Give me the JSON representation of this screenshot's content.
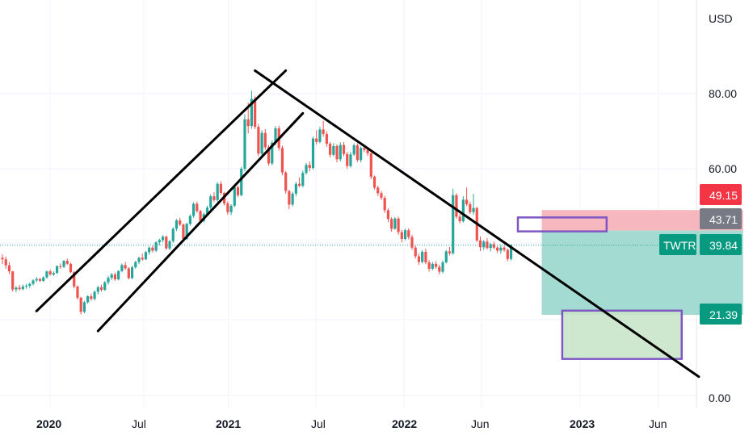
{
  "chart_data": {
    "type": "candlestick",
    "symbol": "TWTR",
    "currency": "USD",
    "y_ticks": [
      "80.00",
      "60.00",
      "0.00"
    ],
    "x_ticks": [
      {
        "label": "2020",
        "bold": true
      },
      {
        "label": "Jul",
        "bold": false
      },
      {
        "label": "2021",
        "bold": true
      },
      {
        "label": "Jul",
        "bold": false
      },
      {
        "label": "2022",
        "bold": true
      },
      {
        "label": "Jun",
        "bold": false
      },
      {
        "label": "2023",
        "bold": true
      },
      {
        "label": "Jun",
        "bold": false
      }
    ],
    "last_price": "39.84",
    "price_labels": {
      "stop": "49.15",
      "entry": "43.71",
      "target": "21.39"
    },
    "colors": {
      "up": "#26a69a",
      "down": "#ef5350",
      "stop_badge": "#f23645",
      "entry_badge": "#787b86",
      "target_badge": "#089981",
      "profit_zone": "#9ed9d1",
      "loss_zone": "#f7b3ba",
      "box_outline": "#7e57c2",
      "box_fill": "#c8e6c9"
    },
    "ohlc": [
      [
        36.5,
        37.4,
        34.8,
        36.1
      ],
      [
        36.1,
        36.8,
        33.6,
        34.5
      ],
      [
        34.5,
        35.3,
        32.2,
        32.9
      ],
      [
        32.9,
        33.0,
        27.6,
        28.1
      ],
      [
        28.1,
        29.0,
        27.4,
        28.6
      ],
      [
        28.6,
        29.3,
        27.8,
        28.2
      ],
      [
        28.2,
        29.4,
        27.9,
        28.9
      ],
      [
        28.9,
        29.6,
        28.3,
        29.1
      ],
      [
        29.1,
        29.9,
        28.5,
        29.6
      ],
      [
        29.6,
        30.8,
        29.2,
        30.5
      ],
      [
        30.5,
        31.4,
        30.0,
        30.9
      ],
      [
        30.9,
        31.2,
        30.1,
        30.4
      ],
      [
        30.4,
        31.6,
        30.1,
        31.3
      ],
      [
        31.3,
        33.1,
        31.0,
        32.9
      ],
      [
        32.9,
        33.4,
        31.8,
        32.1
      ],
      [
        32.1,
        32.9,
        31.7,
        32.5
      ],
      [
        32.5,
        34.5,
        32.2,
        34.3
      ],
      [
        34.3,
        35.0,
        33.6,
        34.1
      ],
      [
        34.1,
        35.9,
        33.8,
        35.7
      ],
      [
        35.7,
        36.3,
        34.6,
        34.9
      ],
      [
        34.9,
        35.2,
        32.4,
        32.7
      ],
      [
        32.7,
        33.0,
        28.4,
        28.9
      ],
      [
        28.9,
        29.2,
        25.4,
        25.9
      ],
      [
        25.9,
        26.2,
        21.5,
        22.2
      ],
      [
        22.2,
        25.1,
        21.8,
        24.7
      ],
      [
        24.7,
        26.6,
        24.3,
        26.3
      ],
      [
        26.3,
        27.0,
        25.1,
        25.6
      ],
      [
        25.6,
        27.9,
        25.2,
        27.5
      ],
      [
        27.5,
        29.1,
        26.8,
        28.7
      ],
      [
        28.7,
        29.4,
        27.6,
        28.0
      ],
      [
        28.0,
        30.3,
        27.7,
        30.0
      ],
      [
        30.0,
        31.7,
        29.4,
        31.2
      ],
      [
        31.2,
        32.5,
        30.6,
        32.1
      ],
      [
        32.1,
        32.6,
        30.4,
        30.8
      ],
      [
        30.8,
        33.2,
        30.5,
        33.0
      ],
      [
        33.0,
        35.0,
        32.7,
        34.6
      ],
      [
        34.6,
        35.4,
        33.3,
        33.7
      ],
      [
        33.7,
        34.0,
        30.8,
        31.1
      ],
      [
        31.1,
        34.4,
        30.9,
        34.0
      ],
      [
        34.0,
        35.7,
        33.6,
        35.4
      ],
      [
        35.4,
        36.8,
        34.8,
        36.5
      ],
      [
        36.5,
        37.6,
        35.7,
        36.1
      ],
      [
        36.1,
        38.3,
        35.9,
        38.0
      ],
      [
        38.0,
        39.5,
        37.3,
        39.2
      ],
      [
        39.2,
        39.8,
        37.9,
        38.4
      ],
      [
        38.4,
        40.9,
        38.0,
        40.6
      ],
      [
        40.6,
        41.6,
        39.8,
        41.2
      ],
      [
        41.2,
        42.5,
        40.6,
        42.1
      ],
      [
        42.1,
        42.4,
        38.6,
        39.0
      ],
      [
        39.0,
        41.2,
        38.5,
        40.9
      ],
      [
        40.9,
        44.6,
        40.5,
        44.2
      ],
      [
        44.2,
        46.8,
        43.6,
        46.4
      ],
      [
        46.4,
        47.1,
        44.9,
        45.3
      ],
      [
        45.3,
        45.6,
        41.1,
        41.5
      ],
      [
        41.5,
        45.8,
        41.2,
        45.5
      ],
      [
        45.5,
        48.0,
        45.0,
        47.6
      ],
      [
        47.6,
        51.2,
        47.1,
        50.8
      ],
      [
        50.8,
        51.4,
        48.4,
        48.9
      ],
      [
        48.9,
        49.2,
        45.8,
        46.3
      ],
      [
        46.3,
        48.5,
        45.9,
        48.1
      ],
      [
        48.1,
        50.3,
        47.6,
        49.8
      ],
      [
        49.8,
        53.3,
        49.2,
        52.8
      ],
      [
        52.8,
        53.9,
        51.3,
        51.8
      ],
      [
        51.8,
        56.5,
        51.4,
        56.1
      ],
      [
        56.1,
        56.8,
        53.2,
        53.7
      ],
      [
        53.7,
        54.0,
        50.4,
        50.9
      ],
      [
        50.9,
        51.5,
        47.9,
        48.6
      ],
      [
        48.6,
        50.7,
        47.8,
        50.3
      ],
      [
        50.3,
        55.6,
        49.9,
        55.2
      ],
      [
        55.2,
        55.6,
        52.6,
        53.1
      ],
      [
        53.1,
        60.6,
        52.8,
        60.1
      ],
      [
        60.1,
        74.6,
        59.4,
        73.2
      ],
      [
        73.2,
        77.6,
        69.5,
        71.4
      ],
      [
        71.4,
        80.8,
        70.7,
        78.6
      ],
      [
        78.6,
        79.3,
        70.6,
        71.2
      ],
      [
        71.2,
        72.0,
        63.4,
        64.1
      ],
      [
        64.1,
        70.3,
        63.6,
        69.6
      ],
      [
        69.6,
        70.6,
        65.1,
        65.8
      ],
      [
        65.8,
        66.4,
        60.9,
        61.5
      ],
      [
        61.5,
        67.6,
        61.0,
        67.0
      ],
      [
        67.0,
        71.4,
        66.3,
        70.8
      ],
      [
        70.8,
        71.5,
        64.9,
        65.6
      ],
      [
        65.6,
        66.2,
        58.4,
        59.1
      ],
      [
        59.1,
        59.5,
        53.5,
        54.2
      ],
      [
        54.2,
        54.5,
        49.4,
        50.6
      ],
      [
        50.6,
        54.0,
        50.1,
        53.5
      ],
      [
        53.5,
        56.6,
        52.8,
        56.1
      ],
      [
        56.1,
        57.8,
        55.2,
        55.6
      ],
      [
        55.6,
        59.6,
        55.1,
        59.0
      ],
      [
        59.0,
        61.6,
        58.5,
        61.1
      ],
      [
        61.1,
        62.0,
        59.4,
        60.3
      ],
      [
        60.3,
        68.6,
        59.9,
        68.1
      ],
      [
        68.1,
        70.3,
        66.5,
        67.2
      ],
      [
        67.2,
        71.2,
        66.8,
        70.5
      ],
      [
        70.5,
        72.8,
        68.6,
        69.3
      ],
      [
        69.3,
        70.0,
        65.9,
        66.7
      ],
      [
        66.7,
        67.2,
        63.1,
        63.8
      ],
      [
        63.8,
        66.9,
        63.4,
        66.1
      ],
      [
        66.1,
        66.6,
        61.8,
        62.6
      ],
      [
        62.6,
        67.1,
        62.0,
        66.4
      ],
      [
        66.4,
        67.2,
        63.4,
        64.0
      ],
      [
        64.0,
        64.5,
        60.1,
        60.8
      ],
      [
        60.8,
        64.6,
        60.4,
        63.9
      ],
      [
        63.9,
        66.8,
        63.5,
        66.3
      ],
      [
        66.3,
        66.8,
        61.9,
        62.4
      ],
      [
        62.4,
        66.0,
        61.8,
        65.6
      ],
      [
        65.6,
        66.4,
        64.5,
        65.1
      ],
      [
        65.1,
        65.8,
        63.5,
        64.2
      ],
      [
        64.2,
        64.4,
        57.3,
        58.0
      ],
      [
        58.0,
        58.3,
        54.6,
        55.1
      ],
      [
        55.1,
        55.6,
        52.9,
        53.6
      ],
      [
        53.6,
        54.2,
        51.8,
        52.4
      ],
      [
        52.4,
        52.9,
        48.4,
        49.1
      ],
      [
        49.1,
        49.6,
        45.9,
        46.8
      ],
      [
        46.8,
        47.3,
        43.4,
        44.2
      ],
      [
        44.2,
        47.3,
        43.9,
        46.9
      ],
      [
        46.9,
        47.4,
        42.6,
        43.3
      ],
      [
        43.3,
        43.9,
        40.6,
        41.5
      ],
      [
        41.5,
        44.2,
        41.1,
        43.8
      ],
      [
        43.8,
        44.3,
        41.4,
        42.0
      ],
      [
        42.0,
        42.6,
        38.6,
        39.2
      ],
      [
        39.2,
        39.8,
        36.3,
        36.9
      ],
      [
        36.9,
        37.6,
        34.6,
        35.4
      ],
      [
        35.4,
        38.6,
        35.0,
        38.1
      ],
      [
        38.1,
        38.9,
        34.8,
        35.3
      ],
      [
        35.3,
        35.9,
        32.8,
        33.6
      ],
      [
        33.6,
        35.4,
        33.2,
        34.9
      ],
      [
        34.9,
        35.6,
        33.6,
        34.1
      ],
      [
        34.1,
        34.7,
        32.1,
        32.8
      ],
      [
        32.8,
        35.8,
        32.4,
        35.3
      ],
      [
        35.3,
        38.6,
        35.0,
        38.2
      ],
      [
        38.2,
        39.4,
        37.1,
        37.7
      ],
      [
        37.7,
        54.8,
        37.3,
        53.1
      ],
      [
        53.1,
        53.6,
        46.9,
        47.4
      ],
      [
        47.4,
        48.1,
        45.6,
        46.2
      ],
      [
        46.2,
        52.8,
        45.8,
        51.9
      ],
      [
        51.9,
        55.1,
        50.2,
        50.7
      ],
      [
        50.7,
        51.4,
        48.1,
        48.6
      ],
      [
        48.6,
        53.5,
        47.9,
        49.7
      ],
      [
        49.7,
        50.0,
        40.6,
        41.1
      ],
      [
        41.1,
        42.1,
        38.3,
        39.3
      ],
      [
        39.3,
        41.2,
        38.6,
        40.8
      ],
      [
        40.8,
        41.7,
        38.7,
        39.1
      ],
      [
        39.1,
        40.5,
        38.2,
        40.1
      ],
      [
        40.1,
        40.8,
        38.8,
        39.2
      ],
      [
        39.2,
        39.6,
        37.8,
        38.4
      ],
      [
        38.4,
        39.9,
        37.6,
        39.2
      ],
      [
        39.2,
        39.7,
        38.1,
        38.6
      ],
      [
        38.6,
        38.9,
        35.6,
        36.2
      ],
      [
        36.2,
        40.1,
        35.8,
        39.84
      ]
    ],
    "trendlines": [
      {
        "from": [
          10,
          22.4
        ],
        "to": [
          83,
          86.1
        ]
      },
      {
        "from": [
          28,
          17.1
        ],
        "to": [
          88,
          74.8
        ]
      },
      {
        "from": [
          74,
          86.1
        ],
        "to": [
          204,
          5.0
        ]
      }
    ],
    "zones": {
      "stop": 49.15,
      "entry": 43.71,
      "target": 21.39,
      "start_bar": 158,
      "end_bar": 217
    },
    "boxes": [
      {
        "bar_from": 151,
        "bar_to": 177,
        "y_from": 43.5,
        "y_to": 47.2
      },
      {
        "bar_from": 164,
        "bar_to": 199,
        "y_from": 9.7,
        "y_to": 22.5
      }
    ]
  }
}
